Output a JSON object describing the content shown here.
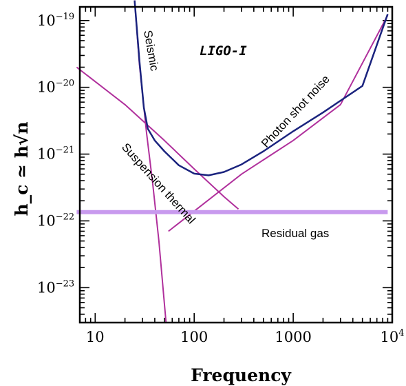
{
  "chart_data": {
    "type": "line",
    "title": "LIGO-I",
    "xlabel": "Frequency",
    "ylabel": "h_c ≃ h√n",
    "x_scale": "log",
    "y_scale": "log",
    "xlim": [
      7,
      10000
    ],
    "ylim": [
      3e-24,
      1.6e-19
    ],
    "x_ticks": [
      {
        "value": 10,
        "label": "10"
      },
      {
        "value": 100,
        "label": "100"
      },
      {
        "value": 1000,
        "label": "1000"
      },
      {
        "value": 10000,
        "label": "10",
        "exp": "4"
      }
    ],
    "y_ticks": [
      {
        "value": 1e-23,
        "base": "10",
        "exp": "−23"
      },
      {
        "value": 1e-22,
        "base": "10",
        "exp": "−22"
      },
      {
        "value": 1e-21,
        "base": "10",
        "exp": "−21"
      },
      {
        "value": 1e-20,
        "base": "10",
        "exp": "−20"
      },
      {
        "value": 1e-19,
        "base": "10",
        "exp": "−19"
      }
    ],
    "series": [
      {
        "name": "Seismic",
        "color": "#b0309c",
        "x": [
          25,
          28,
          33,
          38,
          44,
          52
        ],
        "y": [
          2e-19,
          2.2e-20,
          2.1e-21,
          3.8e-22,
          5e-23,
          3e-24
        ]
      },
      {
        "name": "Suspension thermal",
        "color": "#b0309c",
        "x": [
          6.5,
          20,
          50,
          100,
          200,
          280
        ],
        "y": [
          2e-20,
          5.5e-21,
          1.6e-21,
          6e-22,
          2.3e-22,
          1.5e-22
        ]
      },
      {
        "name": "Photon shot noise",
        "color": "#b0309c",
        "x": [
          55,
          100,
          300,
          1000,
          3000,
          9000
        ],
        "y": [
          7e-23,
          1.4e-22,
          5e-22,
          1.6e-21,
          5.5e-21,
          1.2e-19
        ]
      },
      {
        "name": "Residual gas",
        "color": "#c89aee",
        "x": [
          6.5,
          9000
        ],
        "y": [
          1.35e-22,
          1.35e-22
        ]
      },
      {
        "name": "",
        "color": "#1a237e",
        "x": [
          25,
          28,
          31,
          34,
          40,
          50,
          70,
          100,
          140,
          200,
          300,
          500,
          1000,
          2000,
          5000,
          9000
        ],
        "y": [
          2e-19,
          2.5e-20,
          5e-21,
          2.4e-21,
          1.6e-21,
          1.1e-21,
          6.8e-22,
          5.1e-22,
          4.8e-22,
          5.4e-22,
          7e-22,
          1.1e-21,
          2.2e-21,
          4.2e-21,
          1.05e-20,
          1.25e-19
        ]
      }
    ],
    "grid": false,
    "legend": "none"
  }
}
